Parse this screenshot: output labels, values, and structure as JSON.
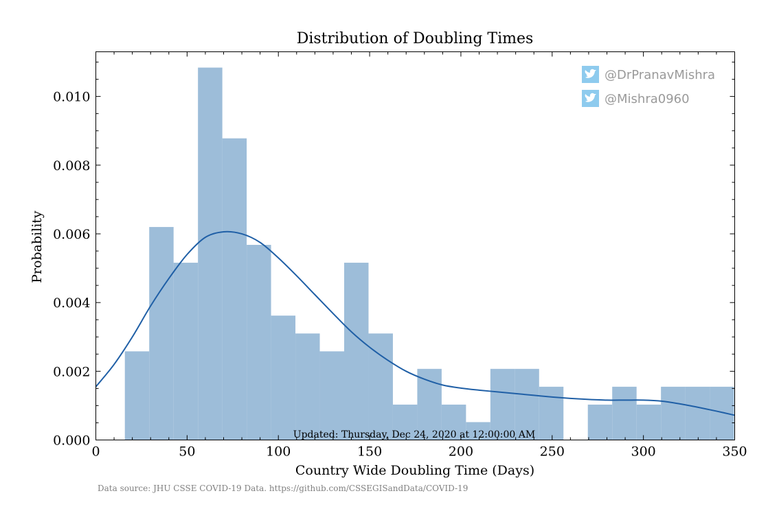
{
  "chart_data": {
    "type": "bar",
    "title": "Distribution of Doubling Times",
    "xlabel": "Country Wide Doubling Time (Days)",
    "ylabel": "Probability",
    "xlim": [
      0,
      350
    ],
    "ylim": [
      0,
      0.0113
    ],
    "xticks": [
      0,
      50,
      100,
      150,
      200,
      250,
      300,
      350
    ],
    "xtick_labels": [
      "0",
      "50",
      "100",
      "150",
      "200",
      "250",
      "300",
      "350"
    ],
    "yticks": [
      0,
      0.002,
      0.004,
      0.006,
      0.008,
      0.01
    ],
    "ytick_labels": [
      "0.000",
      "0.002",
      "0.004",
      "0.006",
      "0.008",
      "0.010"
    ],
    "bin_edges": [
      15.9,
      29.25,
      42.6,
      55.95,
      69.3,
      82.65,
      96.0,
      109.35,
      122.7,
      136.05,
      149.4,
      162.75,
      176.1,
      189.45,
      202.8,
      216.15,
      229.5,
      242.85,
      256.2,
      269.55,
      282.9,
      296.25,
      309.6,
      322.95,
      336.3,
      349.65
    ],
    "bin_values": [
      0.00258,
      0.0062,
      0.00516,
      0.01084,
      0.00878,
      0.00568,
      0.00362,
      0.0031,
      0.00258,
      0.00516,
      0.0031,
      0.00103,
      0.00207,
      0.00103,
      0.00052,
      0.00207,
      0.00207,
      0.00155,
      0.0,
      0.00103,
      0.00155,
      0.00103,
      0.00155,
      0.00155,
      0.00155
    ],
    "kde_curve": {
      "x": [
        0,
        10,
        20,
        30,
        40,
        50,
        60,
        70,
        80,
        90,
        100,
        110,
        120,
        130,
        140,
        150,
        160,
        170,
        180,
        190,
        200,
        210,
        220,
        230,
        240,
        250,
        260,
        270,
        280,
        290,
        300,
        310,
        320,
        330,
        340,
        350
      ],
      "y": [
        0.00155,
        0.0022,
        0.003,
        0.0039,
        0.0047,
        0.0054,
        0.0059,
        0.00606,
        0.006,
        0.00575,
        0.0053,
        0.00478,
        0.00423,
        0.00368,
        0.00315,
        0.0027,
        0.00232,
        0.002,
        0.00177,
        0.0016,
        0.00151,
        0.00145,
        0.0014,
        0.00135,
        0.0013,
        0.00125,
        0.00121,
        0.00118,
        0.00116,
        0.00116,
        0.00116,
        0.00113,
        0.00105,
        0.00095,
        0.00084,
        0.00072
      ]
    },
    "colors": {
      "bars": "#9dbdd9",
      "kde": "#1f5fa6"
    },
    "grid": false,
    "annotation": "Updated: Thursday, Dec 24, 2020 at 12:00:00 AM",
    "source": "Data source: JHU CSSE COVID-19 Data. https://github.com/CSSEGISandData/COVID-19"
  },
  "credits": [
    {
      "icon": "twitter-icon",
      "handle": "@DrPranavMishra"
    },
    {
      "icon": "twitter-icon",
      "handle": "@Mishra0960"
    }
  ],
  "credit_colors": {
    "icon_bg": "#8ecbee",
    "text": "#9a9a9a"
  }
}
